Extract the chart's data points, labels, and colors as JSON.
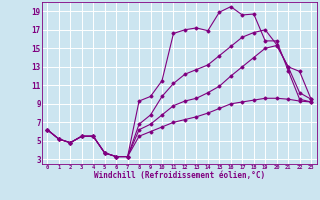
{
  "background_color": "#cce5f0",
  "grid_color": "#ffffff",
  "line_color": "#800080",
  "xlabel": "Windchill (Refroidissement éolien,°C)",
  "xlim": [
    -0.5,
    23.5
  ],
  "ylim": [
    2.5,
    20
  ],
  "xticks": [
    0,
    1,
    2,
    3,
    4,
    5,
    6,
    7,
    8,
    9,
    10,
    11,
    12,
    13,
    14,
    15,
    16,
    17,
    18,
    19,
    20,
    21,
    22,
    23
  ],
  "yticks": [
    3,
    5,
    7,
    9,
    11,
    13,
    15,
    17,
    19
  ],
  "series": [
    {
      "x": [
        0,
        1,
        2,
        3,
        4,
        5,
        6,
        7,
        8,
        9,
        10,
        11,
        12,
        13,
        14,
        15,
        16,
        17,
        18,
        19,
        20,
        21,
        22,
        23
      ],
      "y": [
        6.2,
        5.2,
        4.8,
        5.5,
        5.5,
        3.7,
        3.3,
        3.3,
        9.3,
        9.8,
        11.5,
        16.6,
        17.0,
        17.2,
        16.9,
        18.9,
        19.5,
        18.6,
        18.7,
        15.8,
        15.8,
        12.6,
        9.5,
        9.2
      ]
    },
    {
      "x": [
        0,
        1,
        2,
        3,
        4,
        5,
        6,
        7,
        8,
        9,
        10,
        11,
        12,
        13,
        14,
        15,
        16,
        17,
        18,
        19,
        20,
        21,
        22,
        23
      ],
      "y": [
        6.2,
        5.2,
        4.8,
        5.5,
        5.5,
        3.7,
        3.3,
        3.3,
        5.5,
        6.0,
        6.5,
        7.0,
        7.3,
        7.6,
        8.0,
        8.5,
        9.0,
        9.2,
        9.4,
        9.6,
        9.6,
        9.5,
        9.3,
        9.2
      ]
    },
    {
      "x": [
        0,
        1,
        2,
        3,
        4,
        5,
        6,
        7,
        8,
        9,
        10,
        11,
        12,
        13,
        14,
        15,
        16,
        17,
        18,
        19,
        20,
        21,
        22,
        23
      ],
      "y": [
        6.2,
        5.2,
        4.8,
        5.5,
        5.5,
        3.7,
        3.3,
        3.3,
        6.2,
        6.8,
        7.8,
        8.8,
        9.3,
        9.6,
        10.2,
        10.9,
        12.0,
        13.0,
        14.0,
        15.0,
        15.3,
        13.0,
        12.5,
        9.5
      ]
    },
    {
      "x": [
        0,
        1,
        2,
        3,
        4,
        5,
        6,
        7,
        8,
        9,
        10,
        11,
        12,
        13,
        14,
        15,
        16,
        17,
        18,
        19,
        20,
        21,
        22,
        23
      ],
      "y": [
        6.2,
        5.2,
        4.8,
        5.5,
        5.5,
        3.7,
        3.3,
        3.3,
        6.8,
        7.8,
        9.8,
        11.2,
        12.2,
        12.7,
        13.2,
        14.2,
        15.2,
        16.2,
        16.7,
        17.0,
        15.4,
        13.0,
        10.2,
        9.5
      ]
    }
  ]
}
